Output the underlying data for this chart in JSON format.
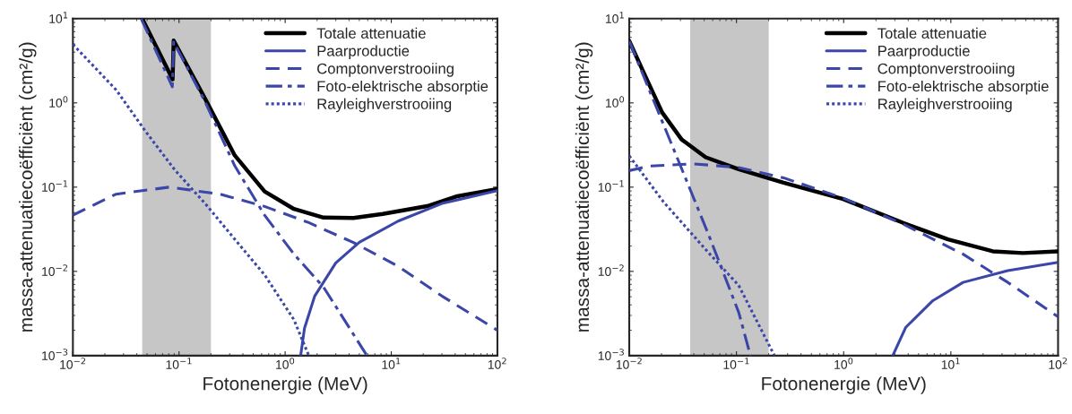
{
  "chart_data": [
    {
      "type": "line",
      "xlabel": "Fotonenergie (MeV)",
      "ylabel": "massa-attenuatiecoëfficiënt (cm²/g)",
      "log": "xy",
      "xlim": [
        0.01,
        100
      ],
      "ylim": [
        0.001,
        10
      ],
      "xticks": [
        {
          "value": 0.01,
          "label": "10$^{−2}$"
        },
        {
          "value": 0.1,
          "label": "10$^{−1}$"
        },
        {
          "value": 1,
          "label": "10$^{0}$"
        },
        {
          "value": 10,
          "label": "10$^{1}$"
        },
        {
          "value": 100,
          "label": "10$^{2}$"
        }
      ],
      "yticks": [
        {
          "value": 0.001,
          "label": "10$^{−3}$"
        },
        {
          "value": 0.01,
          "label": "10$^{−2}$"
        },
        {
          "value": 0.1,
          "label": "10$^{−1}$"
        },
        {
          "value": 1,
          "label": "10$^{0}$"
        },
        {
          "value": 10,
          "label": "10$^{1}$"
        }
      ],
      "grid": false,
      "legend": "top right",
      "bands": [
        {
          "axis": "x",
          "from": 0.045,
          "to": 0.2,
          "color": "#a0a0a0"
        }
      ],
      "series": [
        {
          "name": "Totale attenuatie",
          "color": "#000000",
          "line_style": "solid",
          "x": [
            0.045,
            0.087,
            0.089,
            0.176,
            0.335,
            0.64,
            1.21,
            2.3,
            4.4,
            8.3,
            21.8,
            41.9,
            100
          ],
          "values": [
            10,
            1.9,
            5.5,
            1.12,
            0.238,
            0.089,
            0.055,
            0.0435,
            0.043,
            0.048,
            0.0595,
            0.078,
            0.095
          ]
        },
        {
          "name": "Paarproductie",
          "color": "#3a46a8",
          "line_style": "solid",
          "x": [
            1.4,
            1.52,
            1.9,
            3.0,
            5.0,
            11.6,
            30,
            100
          ],
          "values": [
            0.001,
            0.0021,
            0.0051,
            0.0126,
            0.0221,
            0.0395,
            0.064,
            0.091
          ]
        },
        {
          "name": "Comptonverstrooiing",
          "color": "#3a46a8",
          "line_style": "dashed",
          "x": [
            0.01,
            0.0255,
            0.081,
            0.243,
            0.64,
            1.67,
            4.4,
            11.6,
            30,
            100
          ],
          "values": [
            0.0465,
            0.0825,
            0.1,
            0.0825,
            0.059,
            0.0379,
            0.022,
            0.0115,
            0.0051,
            0.002
          ]
        },
        {
          "name": "Foto-elektrische absorptie",
          "color": "#3a46a8",
          "line_style": "dashdot",
          "x": [
            0.044,
            0.0865,
            0.089,
            0.176,
            0.335,
            0.64,
            1.21,
            2.3,
            5.9
          ],
          "values": [
            10,
            1.55,
            5.3,
            1.03,
            0.179,
            0.0465,
            0.016,
            0.0065,
            0.001
          ]
        },
        {
          "name": "Rayleighverstrooiing",
          "color": "#3a46a8",
          "line_style": "dotted",
          "x": [
            0.01,
            0.0255,
            0.0485,
            0.092,
            0.176,
            0.335,
            0.64,
            1.21,
            1.67
          ],
          "values": [
            4.95,
            1.43,
            0.457,
            0.158,
            0.064,
            0.0241,
            0.0091,
            0.00267,
            0.001
          ]
        }
      ]
    },
    {
      "type": "line",
      "xlabel": "Fotonenergie (MeV)",
      "ylabel": "massa-attenuatiecoëfficiënt (cm²/g)",
      "log": "xy",
      "xlim": [
        0.01,
        100
      ],
      "ylim": [
        0.001,
        10
      ],
      "xticks": [
        {
          "value": 0.01,
          "label": "10$^{−2}$"
        },
        {
          "value": 0.1,
          "label": "10$^{−1}$"
        },
        {
          "value": 1,
          "label": "10$^{0}$"
        },
        {
          "value": 10,
          "label": "10$^{1}$"
        },
        {
          "value": 100,
          "label": "10$^{2}$"
        }
      ],
      "yticks": [
        {
          "value": 0.001,
          "label": "10$^{−3}$"
        },
        {
          "value": 0.01,
          "label": "10$^{−2}$"
        },
        {
          "value": 0.1,
          "label": "10$^{−1}$"
        },
        {
          "value": 1,
          "label": "10$^{0}$"
        },
        {
          "value": 10,
          "label": "10$^{1}$"
        }
      ],
      "grid": false,
      "legend": "top right",
      "bands": [
        {
          "axis": "x",
          "from": 0.037,
          "to": 0.2,
          "color": "#a0a0a0"
        }
      ],
      "series": [
        {
          "name": "Totale attenuatie",
          "color": "#000000",
          "line_style": "solid",
          "x": [
            0.01,
            0.0142,
            0.0203,
            0.0308,
            0.0516,
            0.105,
            0.275,
            0.99,
            3.6,
            9.4,
            24.6,
            47,
            100
          ],
          "values": [
            5.43,
            2.04,
            0.767,
            0.368,
            0.226,
            0.163,
            0.113,
            0.0722,
            0.0376,
            0.024,
            0.0173,
            0.0165,
            0.0173
          ]
        },
        {
          "name": "Paarproductie",
          "color": "#3a46a8",
          "line_style": "solid",
          "x": [
            2.87,
            3.8,
            6.8,
            13,
            34,
            100
          ],
          "values": [
            0.001,
            0.00217,
            0.0045,
            0.0074,
            0.0102,
            0.0128
          ]
        },
        {
          "name": "Comptonverstrooiing",
          "color": "#3a46a8",
          "line_style": "dashed",
          "x": [
            0.01,
            0.0152,
            0.0398,
            0.105,
            0.275,
            0.99,
            3.6,
            13,
            34,
            100
          ],
          "values": [
            0.157,
            0.178,
            0.189,
            0.171,
            0.129,
            0.0741,
            0.0363,
            0.016,
            0.0074,
            0.00289
          ]
        },
        {
          "name": "Foto-elektrische absorptie",
          "color": "#3a46a8",
          "line_style": "dashdot",
          "x": [
            0.01,
            0.0152,
            0.029,
            0.055,
            0.105,
            0.135
          ],
          "values": [
            5.43,
            1.47,
            0.2,
            0.0272,
            0.00326,
            0.001
          ]
        },
        {
          "name": "Rayleighverstrooiing",
          "color": "#3a46a8",
          "line_style": "dotted",
          "x": [
            0.01,
            0.0209,
            0.055,
            0.105,
            0.226
          ],
          "values": [
            0.235,
            0.0666,
            0.0166,
            0.0068,
            0.001
          ]
        }
      ]
    }
  ]
}
